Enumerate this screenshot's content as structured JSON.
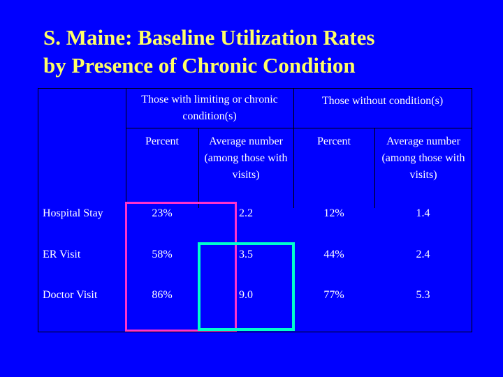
{
  "title": {
    "line1": "S. Maine: Baseline Utilization Rates",
    "line2": "by Presence of Chronic Condition"
  },
  "table": {
    "group_headers": [
      "Those with limiting or chronic condition(s)",
      "Those without condition(s)"
    ],
    "sub_headers": [
      "Percent",
      "Average number (among those with visits)",
      "Percent",
      "Average number (among those with visits)"
    ],
    "rows": [
      {
        "label": "Hospital Stay",
        "values": [
          "23%",
          "2.2",
          "12%",
          "1.4"
        ]
      },
      {
        "label": "ER Visit",
        "values": [
          "58%",
          "3.5",
          "44%",
          "2.4"
        ]
      },
      {
        "label": "Doctor Visit",
        "values": [
          "86%",
          "9.0",
          "77%",
          "5.3"
        ]
      }
    ]
  },
  "highlight_colors": {
    "magenta_box": "#ff33cc",
    "cyan_box": "#00ffcc"
  },
  "colors": {
    "background": "#0000ff",
    "title_text": "#ffff66",
    "body_text": "#ffffff"
  }
}
